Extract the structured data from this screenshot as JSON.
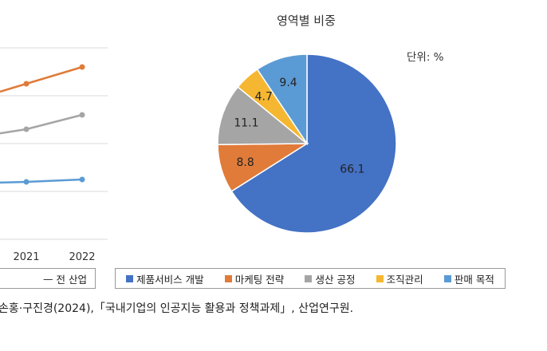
{
  "chart_data": [
    {
      "type": "line",
      "x": [
        "2021",
        "2022"
      ],
      "series": [
        {
          "name": "",
          "color": "#e07b39",
          "values": [
            65,
            72
          ]
        },
        {
          "name": "",
          "color": "#a5a5a5",
          "values": [
            46,
            52
          ]
        },
        {
          "name": "",
          "color": "#5b9bd5",
          "values": [
            24,
            25
          ]
        }
      ],
      "legend_visible_label": "전 산업",
      "grid": true
    },
    {
      "type": "pie",
      "title": "영역별 비중",
      "unit_note": "단위: %",
      "categories": [
        "제품서비스 개발",
        "마케팅 전략",
        "생산 공정",
        "조직관리",
        "판매 목적"
      ],
      "values": [
        66.1,
        8.8,
        11.1,
        4.7,
        9.4
      ],
      "colors": [
        "#4472c4",
        "#e07b39",
        "#a5a5a5",
        "#f5b731",
        "#5b9bd5"
      ],
      "legend_position": "bottom"
    }
  ],
  "source_text": "손홍·구진경(2024),「국내기업의 인공지능 활용과 정책과제」, 산업연구원."
}
